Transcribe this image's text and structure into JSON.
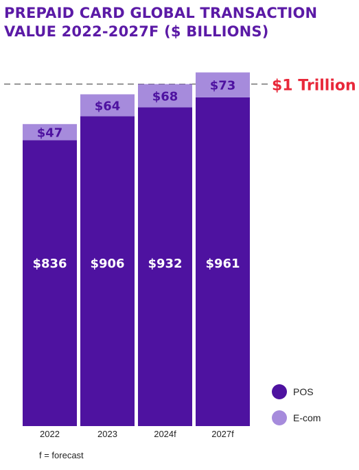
{
  "title_line1": "PREPAID CARD GLOBAL TRANSACTION",
  "title_line2": "VALUE 2022-2027F ($ BILLIONS)",
  "footnote": "f = forecast",
  "colors": {
    "pos": "#4e12a0",
    "ecom": "#a68bdc",
    "title": "#5b1aa6",
    "reference": "#e8283a"
  },
  "chart_data": {
    "type": "bar",
    "stacked": true,
    "categories": [
      "2022",
      "2023",
      "2024f",
      "2027f"
    ],
    "series": [
      {
        "name": "POS",
        "values": [
          836,
          906,
          932,
          961
        ],
        "labels": [
          "$836",
          "$906",
          "$932",
          "$961"
        ]
      },
      {
        "name": "E-com",
        "values": [
          47,
          64,
          68,
          73
        ],
        "labels": [
          "$47",
          "$64",
          "$68",
          "$73"
        ]
      }
    ],
    "reference_line": {
      "value": 1000,
      "label": "$1 Trillion"
    },
    "ylim": [
      0,
      1040
    ],
    "legend_position": "bottom-right",
    "grid": false
  }
}
